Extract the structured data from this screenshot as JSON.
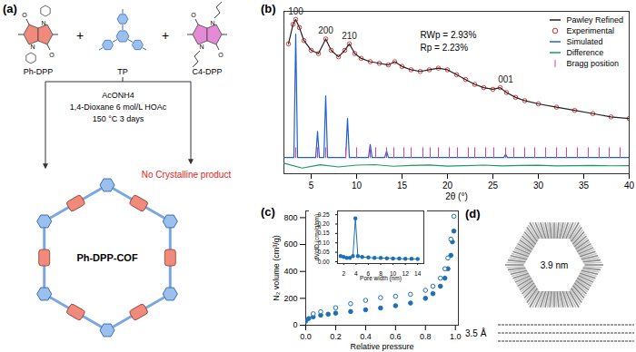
{
  "panels": {
    "a": {
      "label": "(a)",
      "reactants": [
        "Ph-DPP",
        "TP",
        "C4-DPP"
      ],
      "plus": "+",
      "atoms": [
        "O",
        "N"
      ],
      "conditions": [
        "AcONH4",
        "1,4-Dioxane 6 mol/L HOAc",
        "150 °C  3 days"
      ],
      "product": "Ph-DPP-COF",
      "no_product": "No Crystalline product"
    },
    "d": {
      "label": "(d)",
      "pore_size": "3.9 nm",
      "layer_spacing": "3.5 Å"
    }
  },
  "chart_data": [
    {
      "label": "(b)",
      "type": "line",
      "x_label": "2θ (°)",
      "xlim": [
        2,
        40
      ],
      "xticks": [
        5,
        10,
        15,
        20,
        25,
        30,
        35,
        40
      ],
      "ylim": [
        0,
        100
      ],
      "tick_labels": "x",
      "grid": false,
      "legend": "top-right",
      "annotations": [
        {
          "text": "RWp = 2.93%"
        },
        {
          "text": "Rp = 2.23%"
        }
      ],
      "peak_labels": [
        {
          "x": 3.3,
          "text": "100"
        },
        {
          "x": 6.6,
          "text": "200"
        },
        {
          "x": 9.2,
          "text": "210"
        },
        {
          "x": 26.4,
          "text": "001"
        }
      ],
      "series": [
        {
          "name": "Pawley Refined",
          "color": "#222222",
          "type": "line",
          "x": [
            2.5,
            3.0,
            3.3,
            3.7,
            4.2,
            5.0,
            5.8,
            6.6,
            7.2,
            8.0,
            8.7,
            9.2,
            9.8,
            10.5,
            11.5,
            12.5,
            13.5,
            14.2,
            15,
            16,
            17,
            18,
            19,
            20,
            21,
            22,
            23,
            24,
            25,
            25.8,
            26.5,
            27.5,
            28.5,
            30,
            32,
            34,
            36,
            38,
            40
          ],
          "values": [
            80,
            92,
            95,
            90,
            82,
            76,
            74,
            83,
            76,
            72,
            76,
            80,
            74,
            71,
            69,
            68,
            67,
            69,
            66,
            64,
            63,
            64,
            65,
            64,
            61,
            58,
            55,
            53,
            52,
            53,
            50,
            47,
            45,
            43,
            41,
            39,
            37,
            35,
            34
          ]
        },
        {
          "name": "Experimental",
          "color": "#d62728",
          "type": "scatter",
          "marker": "open circle",
          "x": [
            2.5,
            3.0,
            3.3,
            3.7,
            4.2,
            5.0,
            5.8,
            6.6,
            7.2,
            8.0,
            8.7,
            9.2,
            9.8,
            10.5,
            11.5,
            12.5,
            13.5,
            14.2,
            15,
            16,
            17,
            18,
            19,
            20,
            21,
            22,
            23,
            24,
            25,
            25.8,
            26.5,
            27.5,
            28.5,
            30,
            32,
            34,
            36,
            38,
            40
          ],
          "values": [
            80,
            92,
            95,
            90,
            82,
            76,
            74,
            83,
            76,
            72,
            76,
            80,
            74,
            71,
            69,
            68,
            67,
            69,
            66,
            64,
            63,
            64,
            65,
            64,
            61,
            58,
            55,
            53,
            52,
            53,
            50,
            47,
            45,
            43,
            41,
            39,
            37,
            35,
            34
          ]
        },
        {
          "name": "Simulated",
          "color": "#1f5fd6",
          "type": "line",
          "x": [
            2,
            3.1,
            3.3,
            3.5,
            5.5,
            5.7,
            5.9,
            6.4,
            6.6,
            6.8,
            8.8,
            9.0,
            9.2,
            11.3,
            11.5,
            11.7,
            13.1,
            13.3,
            13.5,
            26.2,
            26.4,
            26.6,
            40
          ],
          "values": [
            10,
            10,
            86,
            10,
            10,
            26,
            10,
            10,
            48,
            10,
            10,
            34,
            10,
            10,
            18,
            10,
            10,
            14,
            10,
            10,
            12,
            10,
            10
          ]
        },
        {
          "name": "Difference",
          "color": "#1f9a5a",
          "type": "line",
          "x": [
            2,
            4,
            6,
            8,
            10,
            12,
            14,
            16,
            18,
            20,
            22,
            24,
            26,
            28,
            30,
            32,
            34,
            36,
            38,
            40
          ],
          "values": [
            6.5,
            3.5,
            5.5,
            4.2,
            5.3,
            5.6,
            4.6,
            5.1,
            5.4,
            4.7,
            5.0,
            5.3,
            4.8,
            5.1,
            5.2,
            4.8,
            5.0,
            5.1,
            4.9,
            5.0
          ]
        },
        {
          "name": "Bragg position",
          "color": "#e0409a",
          "type": "tick",
          "x": [
            3.3,
            5.7,
            6.6,
            8.8,
            10.0,
            11.5,
            12.1,
            13.3,
            14.1,
            15.2,
            16.0,
            17.3,
            18.1,
            19.0,
            20.2,
            21.1,
            22.3,
            23.0,
            24.2,
            25.1,
            26.4,
            27.3,
            28.5,
            29.6,
            30.8,
            32.0,
            33.1,
            34.3,
            35.5,
            36.7,
            37.8,
            39.0
          ],
          "values": [
            13,
            13,
            13,
            13,
            13,
            13,
            13,
            13,
            13,
            13,
            13,
            13,
            13,
            13,
            13,
            13,
            13,
            13,
            13,
            13,
            13,
            13,
            13,
            13,
            13,
            13,
            13,
            13,
            13,
            13,
            13,
            13
          ]
        }
      ]
    },
    {
      "label": "(c)",
      "type": "scatter",
      "x_label": "Relative pressure",
      "y_label": "N₂ volume (cm³/g)",
      "xlim": [
        0,
        1.02
      ],
      "xticks": [
        {
          "value": 0,
          "label": "0.0"
        },
        0.2,
        0.4,
        0.6,
        0.8,
        {
          "value": 1,
          "label": "1.0"
        }
      ],
      "ylim": [
        0,
        850
      ],
      "yticks": [
        0,
        200,
        400,
        600,
        800
      ],
      "grid": false,
      "series": [
        {
          "color": "#1f6fb4",
          "marker": "circle",
          "x": [
            0.0,
            0.02,
            0.05,
            0.1,
            0.15,
            0.2,
            0.3,
            0.4,
            0.5,
            0.6,
            0.7,
            0.8,
            0.85,
            0.9,
            0.93,
            0.95,
            0.97,
            0.98,
            0.99
          ],
          "values": [
            30,
            50,
            62,
            75,
            82,
            90,
            102,
            115,
            128,
            145,
            165,
            200,
            235,
            290,
            350,
            420,
            520,
            620,
            700
          ]
        },
        {
          "color": "#1f6fb4",
          "marker": "open circle",
          "x": [
            0.99,
            0.97,
            0.95,
            0.93,
            0.9,
            0.85,
            0.8,
            0.7,
            0.6,
            0.5,
            0.4,
            0.3,
            0.2,
            0.1,
            0.05
          ],
          "values": [
            810,
            640,
            500,
            420,
            350,
            290,
            260,
            230,
            215,
            205,
            185,
            160,
            130,
            100,
            85
          ]
        }
      ]
    },
    {
      "type": "line",
      "marker": "circle",
      "color": "#1f6fb4",
      "x_label": "Pore width (nm)",
      "y_label": "dV/dD (cm³/g/nm)",
      "xlim": [
        1,
        15
      ],
      "xticks": [
        2,
        4,
        6,
        8,
        10,
        12,
        14
      ],
      "ylim": [
        -0.01,
        0.27
      ],
      "yticks": [
        {
          "value": 0,
          "label": "0.00"
        },
        0.05,
        {
          "value": 0.1,
          "label": "0.10"
        },
        0.15,
        {
          "value": 0.2,
          "label": "0.20"
        },
        0.25
      ],
      "grid": false,
      "x": [
        1.5,
        2,
        2.5,
        3,
        3.5,
        3.9,
        4.3,
        5,
        6,
        7,
        8,
        9,
        10,
        11,
        12,
        13,
        14
      ],
      "values": [
        0.03,
        0.025,
        0.02,
        0.02,
        0.03,
        0.23,
        0.03,
        0.025,
        0.022,
        0.02,
        0.02,
        0.018,
        0.017,
        0.016,
        0.015,
        0.015,
        0.014
      ]
    }
  ]
}
